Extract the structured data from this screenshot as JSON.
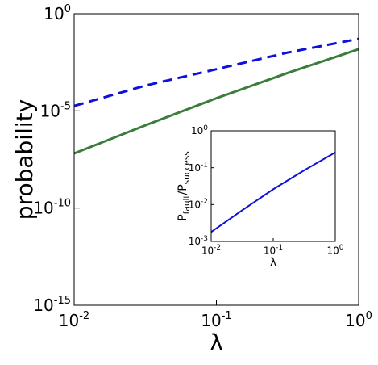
{
  "chart_data": [
    {
      "type": "line",
      "xlabel": "λ",
      "ylabel": "probability",
      "xscale": "log",
      "yscale": "log",
      "x": [
        0.01,
        0.0316,
        0.1,
        0.316,
        1
      ],
      "series": [
        {
          "color": "#1010dd",
          "dash": true,
          "values": [
            1.8e-05,
            0.0002,
            0.0014,
            0.01,
            0.051
          ]
        },
        {
          "color": "#3a7d3a",
          "dash": false,
          "values": [
            6.5e-08,
            1.8e-06,
            4.5e-05,
            0.00089,
            0.015
          ]
        }
      ],
      "xlim": [
        0.01,
        1
      ],
      "ylim": [
        1e-15,
        1
      ],
      "xticks": [
        {
          "value": 0.01,
          "label": "10",
          "exponent": "-2"
        },
        {
          "value": 0.1,
          "label": "10",
          "exponent": "-1"
        },
        {
          "value": 1,
          "label": "10",
          "exponent": "0"
        }
      ],
      "yticks": [
        {
          "value": 1e-15,
          "label": "10",
          "exponent": "-15"
        },
        {
          "value": 1e-10,
          "label": "10",
          "exponent": "-10"
        },
        {
          "value": 1e-05,
          "label": "10",
          "exponent": "-5"
        },
        {
          "value": 1,
          "label": "10",
          "exponent": "0"
        }
      ]
    },
    {
      "type": "line",
      "xlabel": "λ",
      "ylabel": [
        "P",
        "fault",
        "/P",
        "success"
      ],
      "xscale": "log",
      "yscale": "log",
      "x": [
        0.01,
        0.0316,
        0.1,
        0.316,
        1
      ],
      "series": [
        {
          "color": "#1010dd",
          "dash": false,
          "values": [
            0.0018,
            0.007,
            0.026,
            0.085,
            0.26
          ]
        }
      ],
      "xlim": [
        0.01,
        1
      ],
      "ylim": [
        0.001,
        1
      ],
      "xticks": [
        {
          "value": 0.01,
          "label": "10",
          "exponent": "-2"
        },
        {
          "value": 0.1,
          "label": "10",
          "exponent": "-1"
        },
        {
          "value": 1,
          "label": "10",
          "exponent": "0"
        }
      ],
      "yticks": [
        {
          "value": 0.001,
          "label": "10",
          "exponent": "-3"
        },
        {
          "value": 0.01,
          "label": "10",
          "exponent": "-2"
        },
        {
          "value": 0.1,
          "label": "10",
          "exponent": "-1"
        },
        {
          "value": 1,
          "label": "10",
          "exponent": "0"
        }
      ]
    }
  ]
}
